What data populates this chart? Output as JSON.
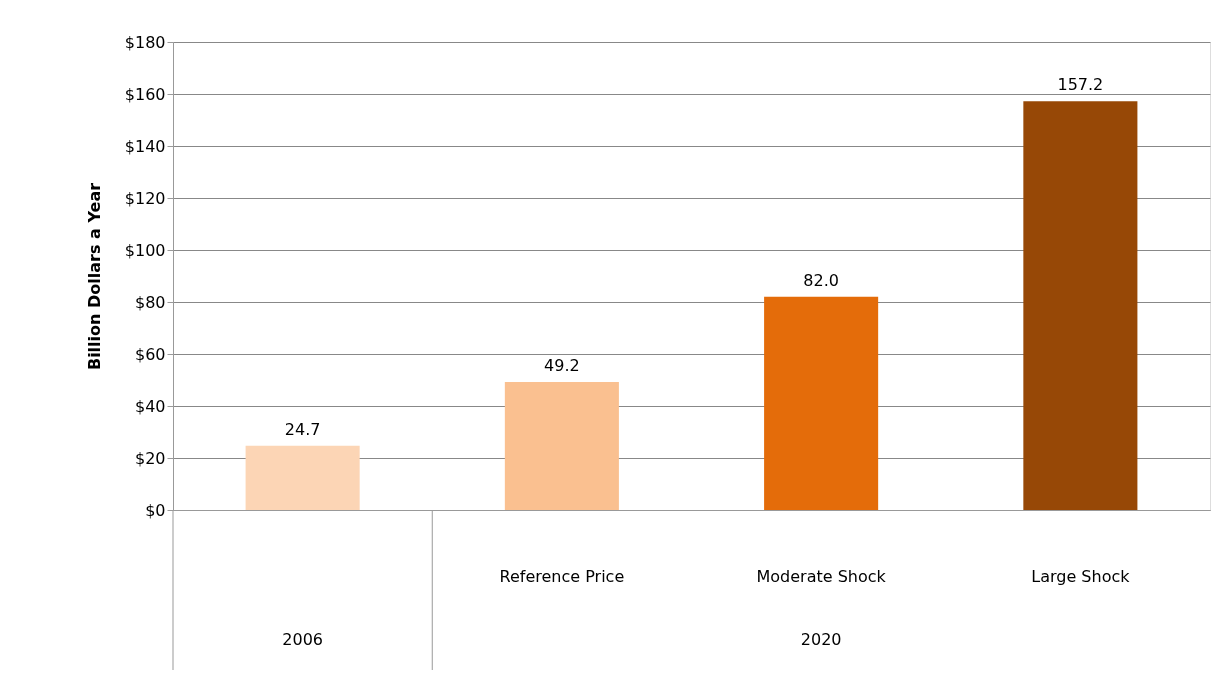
{
  "chart_data": {
    "type": "bar",
    "ylabel": "Billion Dollars a Year",
    "categories": [
      null,
      "Reference Price",
      "Moderate Shock",
      "Large Shock"
    ],
    "values": [
      24.7,
      49.2,
      82.0,
      157.2
    ],
    "colors": [
      "#fcd5b5",
      "#fac090",
      "#e46c0a",
      "#974806"
    ],
    "value_labels": [
      "24.7",
      "49.2",
      "82.0",
      "157.2"
    ],
    "ylim": [
      0,
      180
    ],
    "yticks": [
      {
        "value": 0,
        "label": "$0"
      },
      {
        "value": 20,
        "label": "$20"
      },
      {
        "value": 40,
        "label": "$40"
      },
      {
        "value": 60,
        "label": "$60"
      },
      {
        "value": 80,
        "label": "$80"
      },
      {
        "value": 100,
        "label": "$100"
      },
      {
        "value": 120,
        "label": "$120"
      },
      {
        "value": 140,
        "label": "$140"
      },
      {
        "value": 160,
        "label": "$160"
      },
      {
        "value": 180,
        "label": "$180"
      }
    ],
    "grid": "y",
    "annotations": [
      "2006",
      "2020"
    ]
  }
}
